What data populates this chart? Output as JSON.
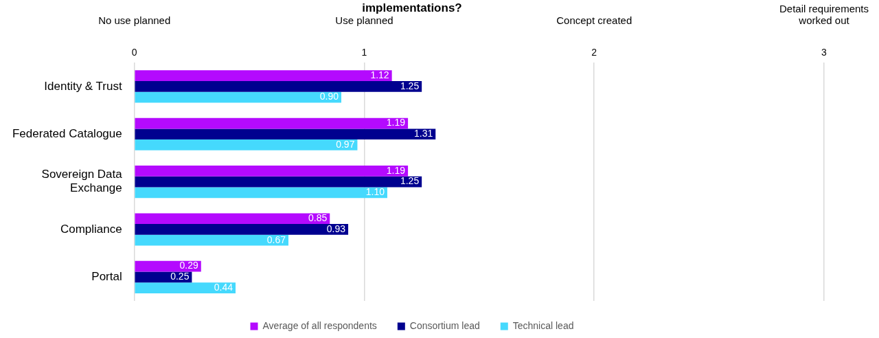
{
  "chart_data": {
    "type": "bar",
    "orientation": "horizontal",
    "title": "implementations?",
    "categories": [
      "Identity & Trust",
      "Federated Catalogue",
      "Sovereign Data Exchange",
      "Compliance",
      "Portal"
    ],
    "series": [
      {
        "name": "Average of all respondents",
        "color": "#b40afe",
        "values": [
          1.12,
          1.19,
          1.19,
          0.85,
          0.29
        ],
        "value_labels": [
          "1.12",
          "1.19",
          "1.19",
          "0.85",
          "0.29"
        ]
      },
      {
        "name": "Consortium lead",
        "color": "#00008f",
        "values": [
          1.25,
          1.31,
          1.25,
          0.93,
          0.25
        ],
        "value_labels": [
          "1.25",
          "1.31",
          "1.25",
          "0.93",
          "0.25"
        ]
      },
      {
        "name": "Technical lead",
        "color": "#45d9fd",
        "values": [
          0.9,
          0.97,
          1.1,
          0.67,
          0.44
        ],
        "value_labels": [
          "0.90",
          "0.97",
          "1.10",
          "0.67",
          "0.44"
        ]
      }
    ],
    "xlim": [
      0,
      3
    ],
    "xticks": [
      0,
      1,
      2,
      3
    ],
    "annotations": [
      "No use planned",
      "Use planned",
      "Concept created",
      "Detail requirements worked out"
    ],
    "grid": "x",
    "legend": "bottom"
  }
}
